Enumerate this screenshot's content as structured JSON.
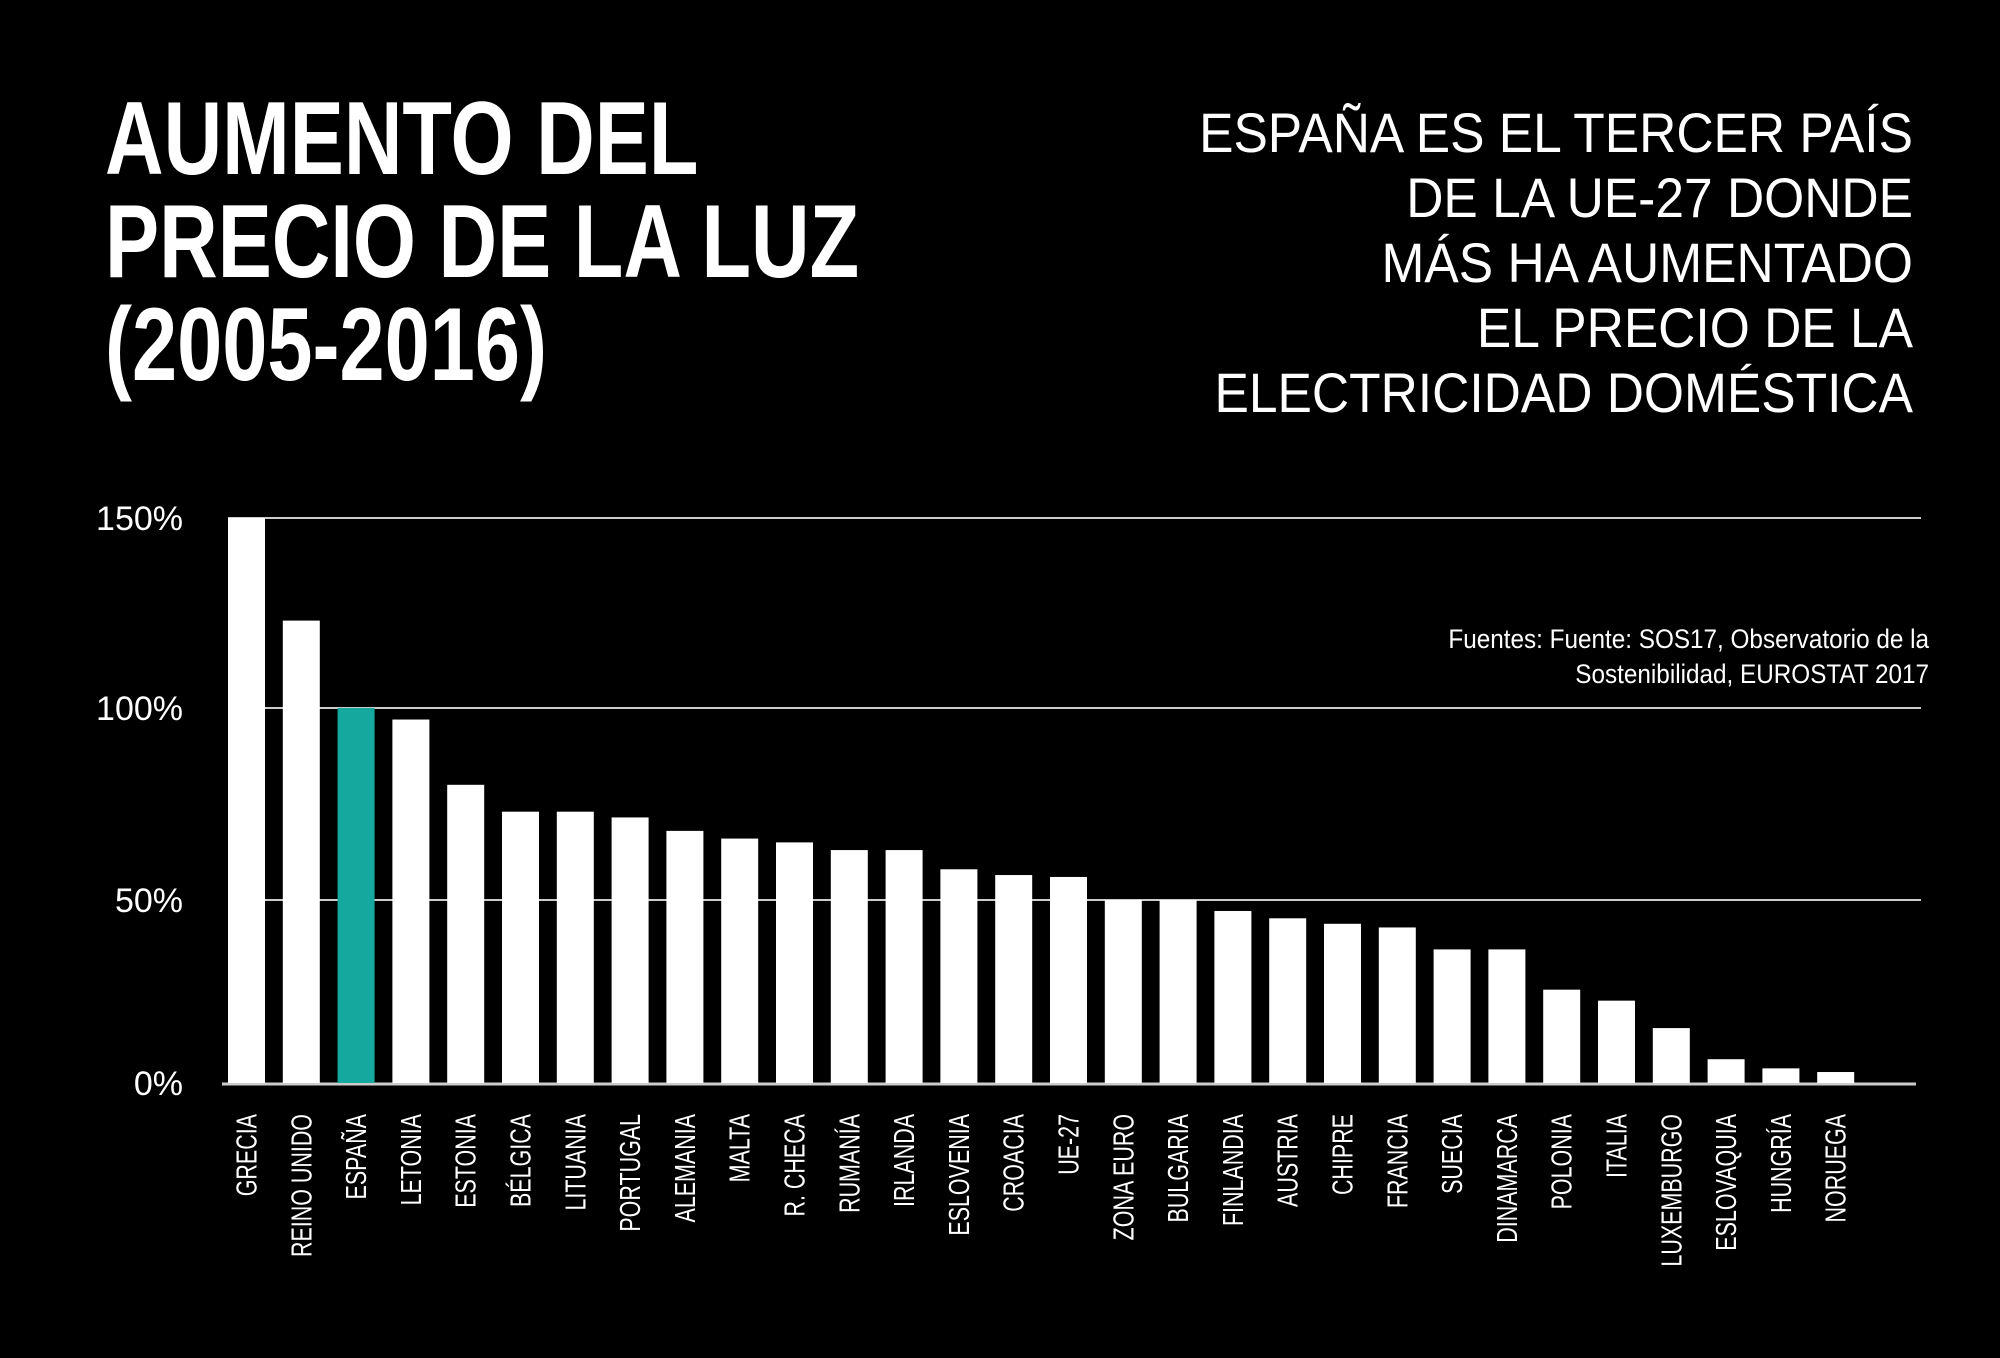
{
  "title_lines": [
    "AUMENTO DEL",
    "PRECIO DE LA LUZ",
    "(2005-2016)"
  ],
  "subtitle_lines": [
    "ESPAÑA ES EL TERCER PAÍS",
    "DE LA UE-27 DONDE",
    "MÁS HA AUMENTADO",
    "EL PRECIO DE LA",
    "ELECTRICIDAD DOMÉSTICA"
  ],
  "chart_data": {
    "type": "bar",
    "title": "AUMENTO DEL PRECIO DE LA LUZ (2005-2016)",
    "source_lines": [
      "Fuentes: Fuente: SOS17, Observatorio de la",
      "Sostenibilidad, EUROSTAT 2017"
    ],
    "categories": [
      "GRECIA",
      "REINO UNIDO",
      "ESPAÑA",
      "LETONIA",
      "ESTONIA",
      "BÉLGICA",
      "LITUANIA",
      "PORTUGAL",
      "ALEMANIA",
      "MALTA",
      "R. CHECA",
      "RUMANÍA",
      "IRLANDA",
      "ESLOVENIA",
      "CROACIA",
      "UE-27",
      "ZONA EURO",
      "BULGARIA",
      "FINLANDIA",
      "AUSTRIA",
      "CHIPRE",
      "FRANCIA",
      "SUECIA",
      "DINAMARCA",
      "POLONIA",
      "ITALIA",
      "LUXEMBURGO",
      "ESLOVAQUIA",
      "HUNGRÍA",
      "NORUEGA"
    ],
    "values": [
      150,
      123,
      100,
      97,
      80,
      73,
      73,
      71.5,
      68,
      66,
      65,
      63,
      63,
      58,
      56.5,
      56,
      50,
      50,
      47,
      45,
      43.5,
      42.5,
      36.5,
      36.5,
      25.5,
      22.5,
      15,
      6.5,
      4,
      3
    ],
    "highlight": "ESPAÑA",
    "yticks": [
      0,
      50,
      100,
      150
    ],
    "ytick_labels": [
      "0%",
      "50%",
      "100%",
      "150%"
    ],
    "ylim": [
      0,
      150
    ],
    "grid": true,
    "colors": {
      "bar": "#ffffff",
      "highlight": "#14a89e",
      "background": "#000000",
      "grid": "#cccccc"
    }
  }
}
